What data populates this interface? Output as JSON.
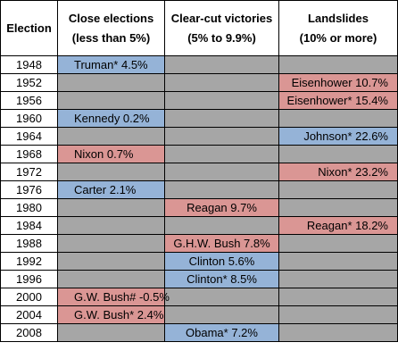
{
  "headers": {
    "election": "Election",
    "close_line1": "Close elections",
    "close_line2": "(less than 5%)",
    "clear_line1": "Clear-cut victories",
    "clear_line2": "(5% to 9.9%)",
    "land_line1": "Landslides",
    "land_line2": "(10% or more)"
  },
  "colors": {
    "democrat": "#95b3d7",
    "republican": "#da9694",
    "empty": "#a6a6a6"
  },
  "rows": [
    {
      "year": "1948",
      "close": "Truman* 4.5%",
      "close_party": "dem",
      "clear": "",
      "clear_party": "",
      "land": "",
      "land_party": ""
    },
    {
      "year": "1952",
      "close": "",
      "close_party": "",
      "clear": "",
      "clear_party": "",
      "land": "Eisenhower 10.7%",
      "land_party": "rep"
    },
    {
      "year": "1956",
      "close": "",
      "close_party": "",
      "clear": "",
      "clear_party": "",
      "land": "Eisenhower* 15.4%",
      "land_party": "rep"
    },
    {
      "year": "1960",
      "close": "Kennedy 0.2%",
      "close_party": "dem",
      "clear": "",
      "clear_party": "",
      "land": "",
      "land_party": ""
    },
    {
      "year": "1964",
      "close": "",
      "close_party": "",
      "clear": "",
      "clear_party": "",
      "land": "Johnson* 22.6%",
      "land_party": "dem"
    },
    {
      "year": "1968",
      "close": "Nixon 0.7%",
      "close_party": "rep",
      "clear": "",
      "clear_party": "",
      "land": "",
      "land_party": ""
    },
    {
      "year": "1972",
      "close": "",
      "close_party": "",
      "clear": "",
      "clear_party": "",
      "land": "Nixon* 23.2%",
      "land_party": "rep"
    },
    {
      "year": "1976",
      "close": "Carter 2.1%",
      "close_party": "dem",
      "clear": "",
      "clear_party": "",
      "land": "",
      "land_party": ""
    },
    {
      "year": "1980",
      "close": "",
      "close_party": "",
      "clear": "Reagan 9.7%",
      "clear_party": "rep",
      "land": "",
      "land_party": ""
    },
    {
      "year": "1984",
      "close": "",
      "close_party": "",
      "clear": "",
      "clear_party": "",
      "land": "Reagan* 18.2%",
      "land_party": "rep"
    },
    {
      "year": "1988",
      "close": "",
      "close_party": "",
      "clear": "G.H.W. Bush 7.8%",
      "clear_party": "rep",
      "land": "",
      "land_party": ""
    },
    {
      "year": "1992",
      "close": "",
      "close_party": "",
      "clear": "Clinton 5.6%",
      "clear_party": "dem",
      "land": "",
      "land_party": ""
    },
    {
      "year": "1996",
      "close": "",
      "close_party": "",
      "clear": "Clinton* 8.5%",
      "clear_party": "dem",
      "land": "",
      "land_party": ""
    },
    {
      "year": "2000",
      "close": "G.W. Bush# -0.5%",
      "close_party": "rep",
      "clear": "",
      "clear_party": "",
      "land": "",
      "land_party": ""
    },
    {
      "year": "2004",
      "close": "G.W. Bush* 2.4%",
      "close_party": "rep",
      "clear": "",
      "clear_party": "",
      "land": "",
      "land_party": ""
    },
    {
      "year": "2008",
      "close": "",
      "close_party": "",
      "clear": "Obama* 7.2%",
      "clear_party": "dem",
      "land": "",
      "land_party": ""
    }
  ]
}
